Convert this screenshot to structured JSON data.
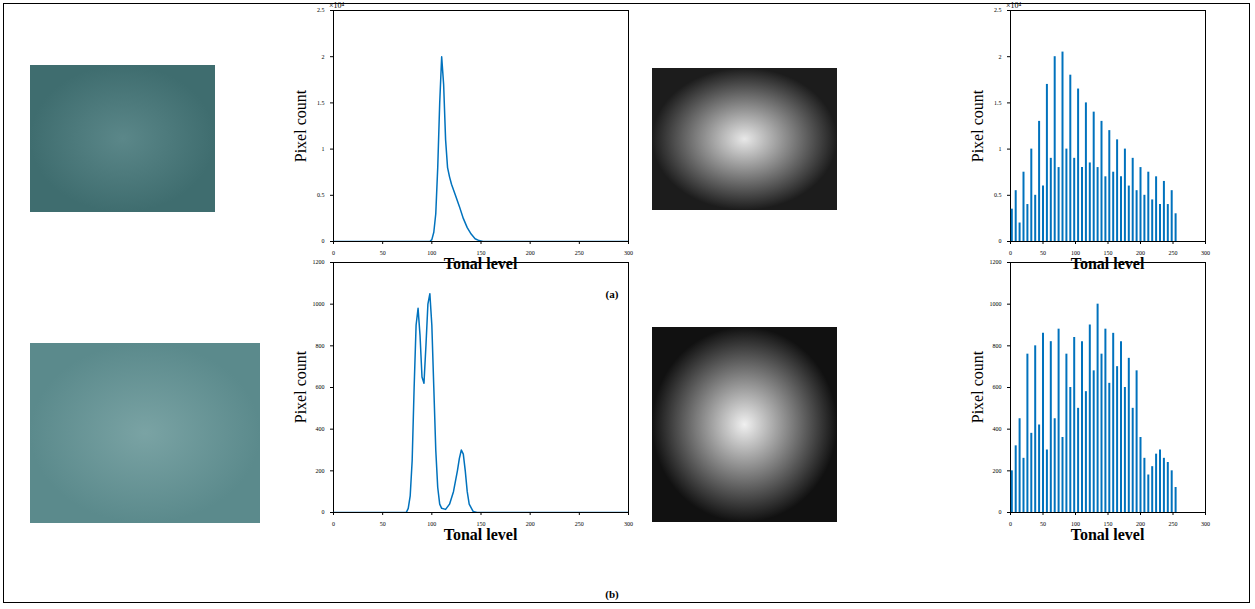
{
  "chart_data": [
    {
      "type": "line",
      "xlabel": "Tonal level",
      "ylabel": "Pixel count",
      "color": "#0072bd",
      "annotations": [
        "×10⁴"
      ],
      "x": [
        0,
        98,
        100,
        102,
        104,
        106,
        108,
        110,
        112,
        114,
        116,
        118,
        120,
        124,
        128,
        132,
        136,
        140,
        144,
        148,
        152,
        300
      ],
      "values": [
        0,
        0,
        0.02,
        0.1,
        0.3,
        0.8,
        1.5,
        2.0,
        1.7,
        1.1,
        0.8,
        0.7,
        0.62,
        0.5,
        0.38,
        0.25,
        0.15,
        0.08,
        0.03,
        0.01,
        0,
        0
      ],
      "xlim": [
        0,
        300
      ],
      "xticks": [
        0,
        50,
        100,
        150,
        200,
        250,
        300
      ],
      "ylim": [
        0,
        2.5
      ],
      "yticks": [
        0,
        0.5,
        1,
        1.5,
        2,
        2.5
      ]
    },
    {
      "type": "bar",
      "xlabel": "Tonal level",
      "ylabel": "Pixel count",
      "color": "#0072bd",
      "annotations": [
        "×10⁴"
      ],
      "x": [
        2,
        8,
        14,
        20,
        26,
        32,
        38,
        44,
        50,
        56,
        62,
        68,
        74,
        80,
        86,
        92,
        98,
        104,
        110,
        116,
        122,
        128,
        134,
        140,
        146,
        152,
        158,
        164,
        170,
        176,
        182,
        188,
        194,
        200,
        206,
        212,
        218,
        224,
        230,
        236,
        242,
        248,
        254
      ],
      "values": [
        0.35,
        0.55,
        0.2,
        0.75,
        0.4,
        1.0,
        0.5,
        1.3,
        0.6,
        1.7,
        0.9,
        2.0,
        0.8,
        2.05,
        1.0,
        1.8,
        0.9,
        1.65,
        0.8,
        1.5,
        0.85,
        1.4,
        0.8,
        1.3,
        0.7,
        1.2,
        0.75,
        1.1,
        0.7,
        1.0,
        0.6,
        0.9,
        0.55,
        0.8,
        0.5,
        0.75,
        0.45,
        0.7,
        0.4,
        0.65,
        0.4,
        0.55,
        0.3
      ],
      "xlim": [
        0,
        300
      ],
      "xticks": [
        0,
        50,
        100,
        150,
        200,
        250,
        300
      ],
      "ylim": [
        0,
        2.5
      ],
      "yticks": [
        0,
        0.5,
        1,
        1.5,
        2,
        2.5
      ]
    },
    {
      "type": "line",
      "xlabel": "Tonal level",
      "ylabel": "Pixel count",
      "color": "#0072bd",
      "x": [
        0,
        74,
        76,
        78,
        80,
        82,
        84,
        86,
        88,
        90,
        92,
        94,
        96,
        98,
        100,
        102,
        104,
        106,
        108,
        110,
        114,
        118,
        122,
        126,
        128,
        130,
        132,
        134,
        136,
        138,
        142,
        146,
        150,
        300
      ],
      "values": [
        0,
        0,
        20,
        80,
        250,
        600,
        900,
        980,
        850,
        650,
        620,
        800,
        1000,
        1050,
        900,
        600,
        300,
        120,
        40,
        20,
        15,
        40,
        100,
        200,
        260,
        300,
        280,
        200,
        100,
        40,
        5,
        0,
        0,
        0
      ],
      "xlim": [
        0,
        300
      ],
      "xticks": [
        0,
        50,
        100,
        150,
        200,
        250,
        300
      ],
      "ylim": [
        0,
        1200
      ],
      "yticks": [
        0,
        200,
        400,
        600,
        800,
        1000,
        1200
      ]
    },
    {
      "type": "bar",
      "xlabel": "Tonal level",
      "ylabel": "Pixel count",
      "color": "#0072bd",
      "x": [
        2,
        8,
        14,
        20,
        26,
        32,
        38,
        44,
        50,
        56,
        62,
        68,
        74,
        80,
        86,
        92,
        98,
        104,
        110,
        116,
        122,
        128,
        134,
        140,
        146,
        152,
        158,
        164,
        170,
        176,
        182,
        188,
        194,
        200,
        206,
        212,
        218,
        224,
        230,
        236,
        242,
        248,
        254
      ],
      "values": [
        200,
        320,
        450,
        260,
        760,
        380,
        800,
        420,
        860,
        300,
        820,
        450,
        880,
        360,
        760,
        600,
        840,
        500,
        820,
        580,
        900,
        680,
        1000,
        760,
        880,
        620,
        860,
        700,
        820,
        600,
        740,
        500,
        680,
        360,
        260,
        180,
        220,
        280,
        300,
        260,
        240,
        200,
        120
      ],
      "xlim": [
        0,
        300
      ],
      "xticks": [
        0,
        50,
        100,
        150,
        200,
        250,
        300
      ],
      "ylim": [
        0,
        1200
      ],
      "yticks": [
        0,
        200,
        400,
        600,
        800,
        1000,
        1200
      ]
    }
  ],
  "panel_labels": [
    "(a)",
    "(b)"
  ]
}
